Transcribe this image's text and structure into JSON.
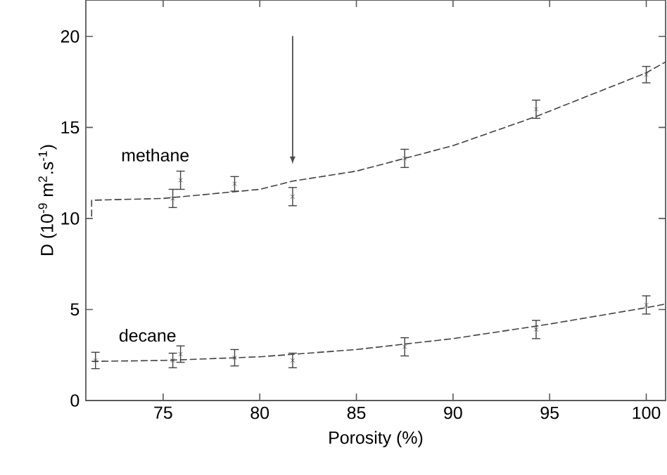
{
  "chart_data": {
    "type": "scatter",
    "xlabel": "Porosity  (%)",
    "ylabel": "D (10$^{-9}$ m$^{2}$.s$^{-1}$)",
    "xlim": [
      71,
      101
    ],
    "ylim": [
      0,
      22
    ],
    "xticks": [
      75,
      80,
      85,
      90,
      95,
      100
    ],
    "yticks": [
      0,
      5,
      10,
      15,
      20
    ],
    "grid": false,
    "series": [
      {
        "name": "methane",
        "marker": "cross",
        "color": "#404040",
        "x": [
          75.5,
          75.9,
          78.7,
          81.7,
          87.5,
          94.3,
          100
        ],
        "values": [
          11.1,
          12.1,
          11.9,
          11.2,
          13.3,
          16.0,
          17.9
        ],
        "errors": [
          0.5,
          0.5,
          0.4,
          0.5,
          0.5,
          0.5,
          0.45
        ]
      },
      {
        "type": "line",
        "line_style": "dashed",
        "color": "#404040",
        "x": [
          71.3,
          71.3,
          75,
          80,
          81.7,
          85,
          87.5,
          90,
          94.3,
          100,
          101
        ],
        "values": [
          10.1,
          11.0,
          11.1,
          11.6,
          12.05,
          12.6,
          13.3,
          14.0,
          15.6,
          18.0,
          18.6
        ]
      },
      {
        "name": "decane",
        "marker": "cross",
        "color": "#404040",
        "x": [
          71.5,
          75.5,
          75.9,
          78.7,
          81.7,
          87.5,
          94.3,
          100
        ],
        "values": [
          2.2,
          2.2,
          2.55,
          2.35,
          2.2,
          2.95,
          3.9,
          5.25
        ],
        "errors": [
          0.45,
          0.4,
          0.45,
          0.45,
          0.4,
          0.5,
          0.5,
          0.5
        ]
      },
      {
        "type": "line",
        "line_style": "dashed",
        "color": "#404040",
        "x": [
          71.3,
          75,
          80,
          85,
          90,
          95,
          100,
          101
        ],
        "values": [
          2.15,
          2.2,
          2.4,
          2.8,
          3.4,
          4.2,
          5.1,
          5.3
        ]
      }
    ]
  }
}
